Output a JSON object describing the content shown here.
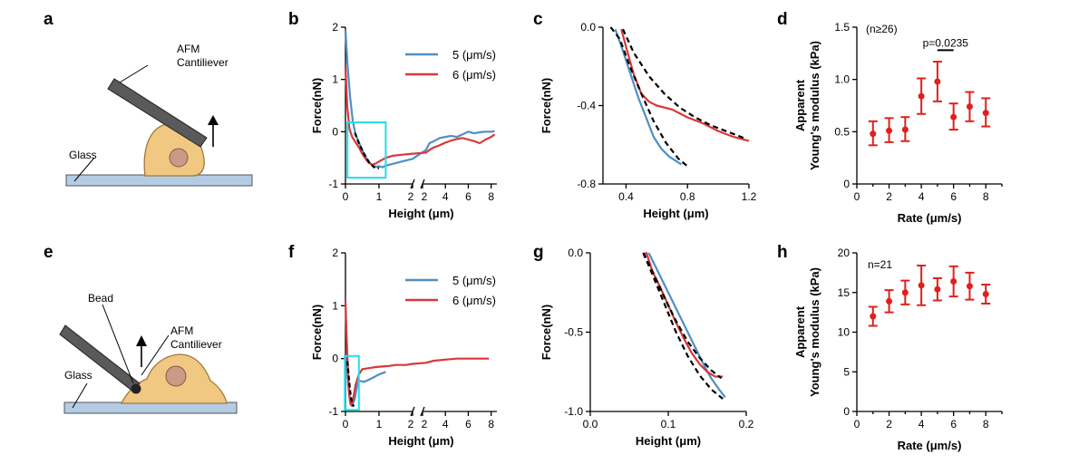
{
  "figure": {
    "panel_labels": {
      "a": "a",
      "b": "b",
      "c": "c",
      "d": "d",
      "e": "e",
      "f": "f",
      "g": "g",
      "h": "h"
    },
    "schematic_a": {
      "afm_label": "AFM",
      "cantilever_label": "Cantiliever",
      "glass_label": "Glass"
    },
    "schematic_e": {
      "bead_label": "Bead",
      "afm_label": "AFM",
      "cantilever_label": "Cantiliever",
      "glass_label": "Glass"
    },
    "colors": {
      "blue": "#4e8fc4",
      "red": "#d9373a",
      "fit": "#000000",
      "box": "#23e0ea",
      "mean": "#e0201b",
      "glass": "#b4cbe4",
      "cell": "#f0c882",
      "nucleus": "#c99a86"
    }
  },
  "chart_data": [
    {
      "id": "b",
      "type": "line",
      "xlabel": "Height (μm)",
      "ylabel": "Force(nN)",
      "x_segments": [
        {
          "range": [
            0,
            2
          ],
          "ticks": [
            "0",
            "1",
            "2"
          ]
        },
        {
          "range": [
            2,
            8.5
          ],
          "ticks": [
            "2",
            "4",
            "6",
            "8"
          ]
        }
      ],
      "ylim": [
        -1,
        2
      ],
      "yticks": [
        "-1",
        "0",
        "1",
        "2"
      ],
      "series": [
        {
          "name": "5 (μm/s)",
          "color": "#4e8fc4",
          "x": [
            0.0,
            0.06,
            0.14,
            0.22,
            0.3,
            0.4,
            0.5,
            0.6,
            0.7,
            0.8,
            0.9,
            1.0,
            1.1,
            1.2,
            1.5,
            1.8,
            2.0,
            2.3,
            2.6,
            3.0,
            3.5,
            4.0,
            4.5,
            5.0,
            5.5,
            6.0,
            6.5,
            7.0,
            7.5,
            8.0,
            8.3
          ],
          "y": [
            1.95,
            1.3,
            0.65,
            0.2,
            -0.05,
            -0.2,
            -0.35,
            -0.48,
            -0.58,
            -0.64,
            -0.67,
            -0.66,
            -0.68,
            -0.65,
            -0.6,
            -0.55,
            -0.52,
            -0.35,
            -0.22,
            -0.18,
            -0.12,
            -0.1,
            -0.08,
            -0.1,
            -0.05,
            0.0,
            -0.03,
            -0.01,
            0.0,
            0.0,
            0.01
          ]
        },
        {
          "name": "6 (μm/s)",
          "color": "#d9373a",
          "x": [
            0.0,
            0.05,
            0.12,
            0.2,
            0.3,
            0.4,
            0.5,
            0.6,
            0.7,
            0.8,
            0.9,
            1.0,
            1.2,
            1.4,
            1.7,
            2.0,
            2.3,
            2.6,
            3.0,
            3.5,
            4.0,
            4.5,
            5.0,
            5.5,
            6.0,
            6.5,
            7.0,
            7.5,
            8.0,
            8.3
          ],
          "y": [
            1.25,
            0.5,
            0.05,
            -0.1,
            -0.2,
            -0.3,
            -0.42,
            -0.52,
            -0.6,
            -0.63,
            -0.61,
            -0.57,
            -0.5,
            -0.46,
            -0.44,
            -0.42,
            -0.4,
            -0.35,
            -0.3,
            -0.26,
            -0.21,
            -0.17,
            -0.14,
            -0.12,
            -0.15,
            -0.18,
            -0.22,
            -0.15,
            -0.1,
            -0.05
          ]
        }
      ],
      "fit": {
        "x": [
          0.28,
          0.4,
          0.55,
          0.7,
          0.85,
          1.0
        ],
        "y": [
          -0.02,
          -0.22,
          -0.42,
          -0.58,
          -0.68,
          -0.7
        ]
      },
      "legend": "top-right"
    },
    {
      "id": "c",
      "type": "line",
      "xlabel": "Height (μm)",
      "ylabel": "Force(nN)",
      "xlim": [
        0.25,
        1.2
      ],
      "xticks": [
        0.4,
        0.8,
        1.2
      ],
      "xticklabels": [
        "0.4",
        "0.8",
        "1.2"
      ],
      "ylim": [
        -0.8,
        0.0
      ],
      "yticks": [
        0.0,
        -0.4,
        -0.8
      ],
      "yticklabels": [
        "0.0",
        "-0.4",
        "-0.8"
      ],
      "series": [
        {
          "color": "#4e8fc4",
          "x": [
            0.33,
            0.38,
            0.43,
            0.48,
            0.53,
            0.58,
            0.63,
            0.68,
            0.72,
            0.76
          ],
          "y": [
            -0.01,
            -0.12,
            -0.24,
            -0.36,
            -0.46,
            -0.56,
            -0.62,
            -0.66,
            -0.68,
            -0.7
          ]
        },
        {
          "color": "#d9373a",
          "x": [
            0.37,
            0.4,
            0.45,
            0.5,
            0.55,
            0.6,
            0.7,
            0.8,
            0.9,
            1.0,
            1.1,
            1.2
          ],
          "y": [
            -0.01,
            -0.1,
            -0.24,
            -0.34,
            -0.38,
            -0.4,
            -0.42,
            -0.46,
            -0.49,
            -0.53,
            -0.56,
            -0.58
          ]
        }
      ],
      "fits": [
        {
          "x": [
            0.3,
            0.36,
            0.42,
            0.5,
            0.58,
            0.66,
            0.74,
            0.8
          ],
          "y": [
            0.0,
            -0.06,
            -0.19,
            -0.34,
            -0.48,
            -0.59,
            -0.67,
            -0.71
          ]
        },
        {
          "x": [
            0.38,
            0.45,
            0.55,
            0.65,
            0.75,
            0.85,
            0.95,
            1.05,
            1.15,
            1.18
          ],
          "y": [
            -0.01,
            -0.13,
            -0.25,
            -0.34,
            -0.41,
            -0.46,
            -0.5,
            -0.53,
            -0.56,
            -0.57
          ]
        }
      ]
    },
    {
      "id": "d",
      "type": "scatter",
      "xlabel": "Rate (μm/s)",
      "ylabel": "Apparent Young's modulus (kPa)",
      "xlim": [
        0,
        9
      ],
      "xticks": [
        0,
        2,
        4,
        6,
        8
      ],
      "ylim": [
        0,
        1.5
      ],
      "yticks": [
        0,
        0.5,
        1.0,
        1.5
      ],
      "yticklabels": [
        "0",
        "0.5",
        "1.0",
        "1.5"
      ],
      "x": [
        1,
        2,
        3,
        4,
        5,
        6,
        7,
        8
      ],
      "mean": [
        0.48,
        0.51,
        0.52,
        0.84,
        0.98,
        0.64,
        0.74,
        0.68
      ],
      "lower": [
        0.37,
        0.4,
        0.41,
        0.67,
        0.79,
        0.52,
        0.6,
        0.55
      ],
      "upper": [
        0.6,
        0.63,
        0.64,
        1.01,
        1.17,
        0.77,
        0.88,
        0.82
      ],
      "annotations": [
        "(n≥26)",
        "p=0.0235"
      ],
      "significance": {
        "x": [
          5,
          6
        ],
        "y": 1.28
      }
    },
    {
      "id": "f",
      "type": "line",
      "xlabel": "Height (μm)",
      "ylabel": "Force(nN)",
      "x_segments": [
        {
          "range": [
            0,
            2
          ],
          "ticks": [
            "0",
            "1",
            "2"
          ]
        },
        {
          "range": [
            2,
            8.5
          ],
          "ticks": [
            "2",
            "4",
            "6",
            "8"
          ]
        }
      ],
      "ylim": [
        -1,
        2
      ],
      "yticks": [
        "-1",
        "0",
        "1",
        "2"
      ],
      "series": [
        {
          "name": "5 (μm/s)",
          "color": "#4e8fc4",
          "x": [
            0.03,
            0.08,
            0.14,
            0.2,
            0.28,
            0.35,
            0.42,
            0.55,
            0.7,
            0.85,
            1.0,
            1.2
          ],
          "y": [
            0.05,
            -0.5,
            -0.85,
            -0.9,
            -0.75,
            -0.5,
            -0.42,
            -0.44,
            -0.4,
            -0.35,
            -0.3,
            -0.25
          ]
        },
        {
          "name": "6 (μm/s)",
          "color": "#d9373a",
          "x": [
            0.0,
            0.04,
            0.08,
            0.12,
            0.17,
            0.22,
            0.3,
            0.4,
            0.5,
            0.7,
            0.9,
            1.1,
            1.3,
            1.5,
            1.8,
            2.0,
            2.3,
            3.0,
            4.0,
            5.0,
            6.0,
            7.0,
            7.8
          ],
          "y": [
            1.1,
            0.3,
            -0.3,
            -0.7,
            -0.88,
            -0.8,
            -0.5,
            -0.3,
            -0.2,
            -0.18,
            -0.16,
            -0.15,
            -0.14,
            -0.12,
            -0.12,
            -0.1,
            -0.08,
            -0.04,
            -0.02,
            0.0,
            0.0,
            0.0,
            0.0
          ]
        }
      ],
      "fit": {
        "x": [
          0.06,
          0.1,
          0.14,
          0.18,
          0.22,
          0.26
        ],
        "y": [
          -0.05,
          -0.35,
          -0.62,
          -0.8,
          -0.88,
          -0.9
        ]
      },
      "legend": "top-right"
    },
    {
      "id": "g",
      "type": "line",
      "xlabel": "Height (μm)",
      "ylabel": "Force(nN)",
      "xlim": [
        0.0,
        0.2
      ],
      "xticks": [
        0.0,
        0.1,
        0.2
      ],
      "xticklabels": [
        "0.0",
        "0.1",
        "0.2"
      ],
      "ylim": [
        -1.0,
        0.0
      ],
      "yticks": [
        0.0,
        -0.5,
        -1.0
      ],
      "yticklabels": [
        "0.0",
        "-0.5",
        "-1.0"
      ],
      "series": [
        {
          "color": "#4e8fc4",
          "x": [
            0.075,
            0.085,
            0.095,
            0.105,
            0.115,
            0.125,
            0.135,
            0.145,
            0.155,
            0.165,
            0.173
          ],
          "y": [
            0.0,
            -0.1,
            -0.2,
            -0.3,
            -0.4,
            -0.5,
            -0.6,
            -0.7,
            -0.79,
            -0.86,
            -0.91
          ]
        },
        {
          "color": "#d9373a",
          "x": [
            0.068,
            0.072,
            0.08,
            0.09,
            0.1,
            0.11,
            0.12,
            0.13,
            0.14,
            0.15,
            0.16,
            0.17
          ],
          "y": [
            -0.02,
            0.0,
            -0.12,
            -0.22,
            -0.33,
            -0.44,
            -0.54,
            -0.63,
            -0.7,
            -0.75,
            -0.78,
            -0.78
          ]
        }
      ],
      "fits": [
        {
          "x": [
            0.068,
            0.08,
            0.095,
            0.11,
            0.125,
            0.14,
            0.155,
            0.17
          ],
          "y": [
            0.0,
            -0.14,
            -0.32,
            -0.5,
            -0.65,
            -0.77,
            -0.86,
            -0.92
          ]
        },
        {
          "x": [
            0.068,
            0.08,
            0.095,
            0.11,
            0.125,
            0.14,
            0.155,
            0.168
          ],
          "y": [
            0.0,
            -0.12,
            -0.28,
            -0.43,
            -0.56,
            -0.66,
            -0.74,
            -0.79
          ]
        }
      ]
    },
    {
      "id": "h",
      "type": "scatter",
      "xlabel": "Rate (μm/s)",
      "ylabel": "Apparent Young's modulus (kPa)",
      "xlim": [
        0,
        9
      ],
      "xticks": [
        0,
        2,
        4,
        6,
        8
      ],
      "ylim": [
        0,
        20
      ],
      "yticks": [
        0,
        5,
        10,
        15,
        20
      ],
      "x": [
        1,
        2,
        3,
        4,
        5,
        6,
        7,
        8
      ],
      "mean": [
        12.0,
        13.9,
        15.0,
        15.9,
        15.4,
        16.4,
        15.8,
        14.8
      ],
      "lower": [
        10.8,
        12.5,
        13.5,
        13.4,
        14.0,
        14.5,
        14.1,
        13.6
      ],
      "upper": [
        13.2,
        15.3,
        16.5,
        18.4,
        16.8,
        18.3,
        17.5,
        16.0
      ],
      "annotations": [
        "n=21"
      ]
    }
  ]
}
